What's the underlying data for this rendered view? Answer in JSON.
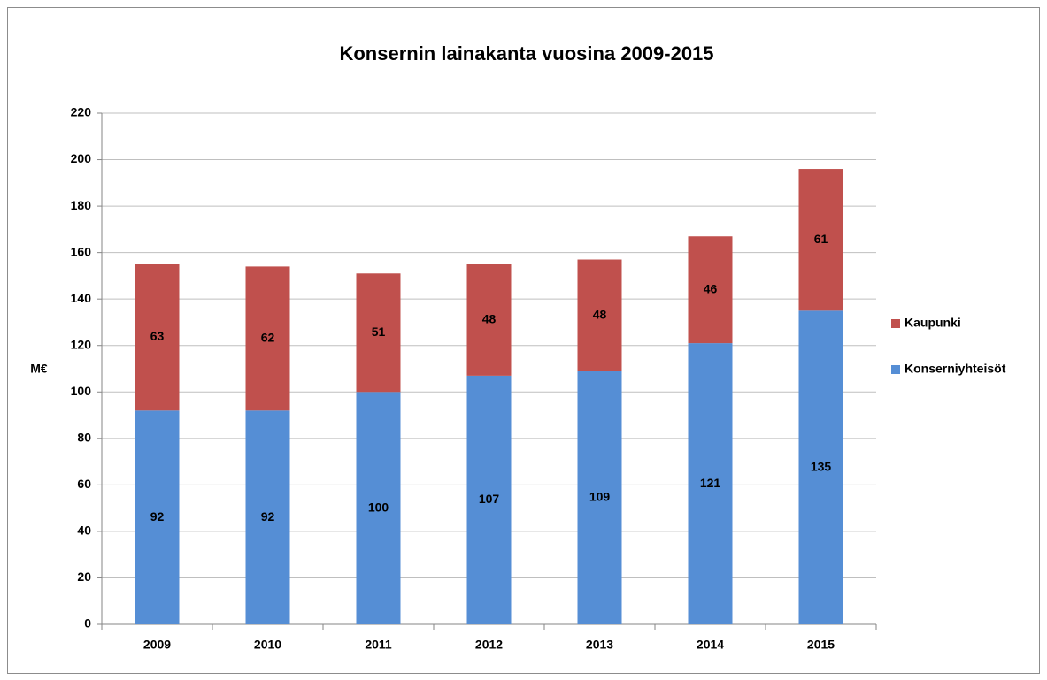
{
  "chart_data": {
    "type": "stacked-bar",
    "title": "Konsernin lainakanta vuosina 2009-2015",
    "y_label": "M€",
    "categories": [
      "2009",
      "2010",
      "2011",
      "2012",
      "2013",
      "2014",
      "2015"
    ],
    "series": [
      {
        "name": "Konserniyhteisöt",
        "color": "#558ed5",
        "values": [
          92,
          92,
          100,
          107,
          109,
          121,
          135
        ]
      },
      {
        "name": "Kaupunki",
        "color": "#c0504d",
        "values": [
          63,
          62,
          51,
          48,
          48,
          46,
          61
        ]
      }
    ],
    "ylim": [
      0,
      220
    ],
    "yticks": [
      0,
      20,
      40,
      60,
      80,
      100,
      120,
      140,
      160,
      180,
      200,
      220
    ],
    "grid": true,
    "legend": "right"
  }
}
